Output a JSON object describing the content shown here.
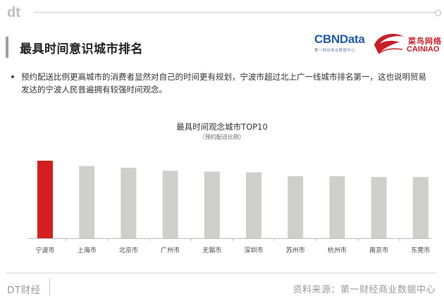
{
  "header": {
    "logo_text": "dt",
    "title": "最具时间意识城市排名"
  },
  "brands": {
    "cbn": {
      "name": "CBNData",
      "subtitle": "第一财经商业数据中心",
      "color": "#1f5aa8"
    },
    "cainiao": {
      "name_cn": "菜鸟网络",
      "name_en": "CAINIAO",
      "color": "#c8202a"
    }
  },
  "bullet": {
    "text": "预约配送比例更高城市的消费者显然对自己的时间更有规划，宁波市超过北上广一线城市排名第一，这也说明贸易发达的宁波人民普遍拥有较强时间观念。"
  },
  "chart_data": {
    "type": "bar",
    "title": "最具时间观念城市TOP10",
    "subtitle": "（预约配送比例）",
    "categories": [
      "宁波市",
      "上海市",
      "北京市",
      "广州市",
      "无锡市",
      "深圳市",
      "苏州市",
      "杭州市",
      "南京市",
      "东莞市"
    ],
    "values": [
      100,
      93,
      91,
      87,
      86,
      85,
      80,
      80,
      79,
      79
    ],
    "highlight_index": 0,
    "colors": {
      "highlight": "#d31f1f",
      "default": "#cfcfcb"
    },
    "ylim": [
      0,
      100
    ],
    "grid": false,
    "legend": "none"
  },
  "footer": {
    "brand": "DT财经",
    "source": "资料来源：第一财经商业数据中心"
  }
}
